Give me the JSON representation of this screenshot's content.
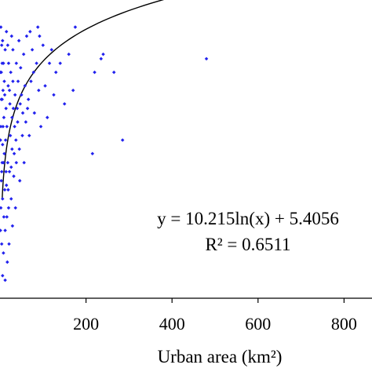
{
  "chart_data": {
    "type": "scatter",
    "xlabel": "Urban area (km²)",
    "ylabel": "",
    "x_ticks": [
      200,
      400,
      600,
      800
    ],
    "xlim": [
      0,
      865
    ],
    "ylim": [
      0,
      66
    ],
    "grid": false,
    "point_color": "#2222ee",
    "fit": {
      "type": "logarithmic",
      "a": 10.215,
      "b": 5.4056,
      "x_range": [
        5,
        865
      ],
      "equation_label": "y = 10.215ln(x) + 5.4056",
      "r2_label": "R² = 0.6511"
    },
    "points": [
      [
        480,
        53
      ],
      [
        265,
        50
      ],
      [
        240,
        54
      ],
      [
        235,
        53
      ],
      [
        220,
        50
      ],
      [
        285,
        35
      ],
      [
        215,
        32
      ],
      [
        175,
        60
      ],
      [
        160,
        54
      ],
      [
        140,
        52
      ],
      [
        120,
        55
      ],
      [
        100,
        56
      ],
      [
        85,
        52
      ],
      [
        75,
        55
      ],
      [
        70,
        59
      ],
      [
        62,
        58
      ],
      [
        55,
        54
      ],
      [
        48,
        51
      ],
      [
        42,
        48
      ],
      [
        38,
        52
      ],
      [
        110,
        40
      ],
      [
        95,
        38
      ],
      [
        80,
        41
      ],
      [
        68,
        36
      ],
      [
        60,
        39
      ],
      [
        52,
        36
      ],
      [
        45,
        33
      ],
      [
        40,
        42
      ],
      [
        35,
        45
      ],
      [
        30,
        48
      ],
      [
        28,
        40
      ],
      [
        25,
        50
      ],
      [
        22,
        46
      ],
      [
        20,
        52
      ],
      [
        18,
        56
      ],
      [
        15,
        59
      ],
      [
        12,
        55
      ],
      [
        10,
        48
      ],
      [
        8,
        52
      ],
      [
        6,
        57
      ],
      [
        5,
        44
      ],
      [
        3,
        50
      ],
      [
        2,
        60
      ],
      [
        1,
        35
      ],
      [
        4,
        28
      ],
      [
        6,
        22
      ],
      [
        9,
        18
      ],
      [
        12,
        15
      ],
      [
        8,
        10
      ],
      [
        15,
        25
      ],
      [
        18,
        30
      ],
      [
        22,
        28
      ],
      [
        28,
        33
      ],
      [
        32,
        27
      ],
      [
        26,
        22
      ],
      [
        16,
        38
      ],
      [
        14,
        42
      ],
      [
        10,
        32
      ],
      [
        7,
        38
      ],
      [
        5,
        30
      ],
      [
        3,
        26
      ],
      [
        2,
        20
      ],
      [
        1,
        15
      ],
      [
        4,
        12
      ],
      [
        6,
        5
      ],
      [
        12,
        4
      ],
      [
        20,
        20
      ],
      [
        24,
        36
      ],
      [
        34,
        38
      ],
      [
        38,
        30
      ],
      [
        50,
        45
      ],
      [
        58,
        47
      ],
      [
        66,
        44
      ],
      [
        72,
        48
      ],
      [
        90,
        46
      ],
      [
        105,
        47
      ],
      [
        125,
        45
      ],
      [
        150,
        43
      ],
      [
        170,
        46
      ],
      [
        130,
        50
      ],
      [
        115,
        52
      ],
      [
        92,
        58
      ],
      [
        78,
        50
      ],
      [
        64,
        42
      ],
      [
        56,
        30
      ],
      [
        46,
        26
      ],
      [
        36,
        20
      ],
      [
        29,
        16
      ],
      [
        21,
        12
      ],
      [
        17,
        8
      ],
      [
        11,
        45
      ],
      [
        13,
        35
      ],
      [
        9,
        40
      ],
      [
        7,
        46
      ],
      [
        5,
        52
      ],
      [
        3,
        44
      ],
      [
        2,
        38
      ],
      [
        1,
        50
      ],
      [
        4,
        56
      ],
      [
        30,
        55
      ],
      [
        44,
        57
      ],
      [
        88,
        60
      ],
      [
        27,
        58
      ],
      [
        19,
        47
      ],
      [
        23,
        43
      ],
      [
        31,
        42
      ],
      [
        41,
        39
      ],
      [
        53,
        41
      ],
      [
        47,
        43
      ],
      [
        37,
        35
      ],
      [
        33,
        32
      ],
      [
        26,
        29
      ],
      [
        19,
        24
      ],
      [
        14,
        28
      ],
      [
        11,
        24
      ],
      [
        8,
        30
      ],
      [
        6,
        34
      ],
      [
        16,
        18
      ]
    ]
  }
}
